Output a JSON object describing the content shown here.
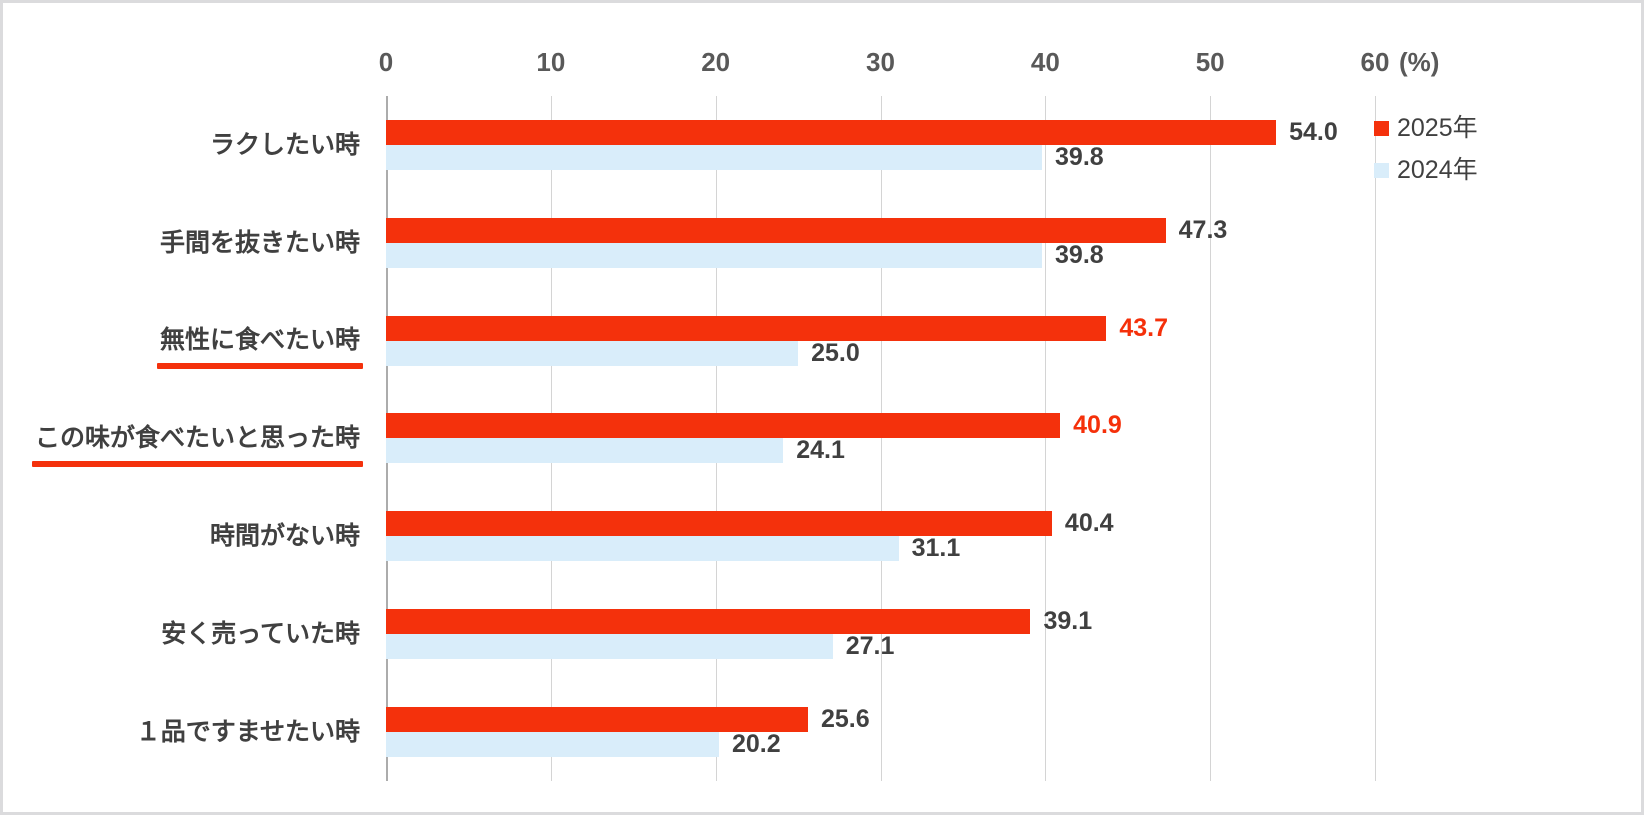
{
  "axis": {
    "unit_label": "(%)"
  },
  "chart_data": {
    "type": "bar",
    "orientation": "horizontal",
    "title": "",
    "categories": [
      "ラクしたい時",
      "手間を抜きたい時",
      "無性に食べたい時",
      "この味が食べたいと思った時",
      "時間がない時",
      "安く売っていた時",
      "１品ですませたい時"
    ],
    "underlined_category_indices": [
      2,
      3
    ],
    "series": [
      {
        "name": "2025年",
        "color": "#F4310C",
        "values": [
          54.0,
          47.3,
          43.7,
          40.9,
          40.4,
          39.1,
          25.6
        ],
        "emphasized_value_indices": [
          2,
          3
        ]
      },
      {
        "name": "2024年",
        "color": "#D9EDFA",
        "values": [
          39.8,
          39.8,
          25.0,
          24.1,
          31.1,
          27.1,
          20.2
        ],
        "emphasized_value_indices": []
      }
    ],
    "x_ticks": [
      0,
      10,
      20,
      30,
      40,
      50,
      60
    ],
    "xlim": [
      0,
      60
    ],
    "x_unit_label": "(%)",
    "grid": "vertical",
    "legend_position": "top-right",
    "value_label_format": "one-decimal, outside end of bar"
  },
  "colors": {
    "bar_2025": "#F4310C",
    "bar_2024": "#D9EDFA",
    "value_text": "#404040",
    "value_text_emphasis": "#F5300A",
    "category_text": "#404040",
    "axis_text": "#595959",
    "gridline": "#D4D4D4",
    "zero_axis_line": "#ACACAC",
    "category_underline": "#F4310C",
    "background": "#FFFFFF",
    "frame_border": "#DBDBDD"
  }
}
